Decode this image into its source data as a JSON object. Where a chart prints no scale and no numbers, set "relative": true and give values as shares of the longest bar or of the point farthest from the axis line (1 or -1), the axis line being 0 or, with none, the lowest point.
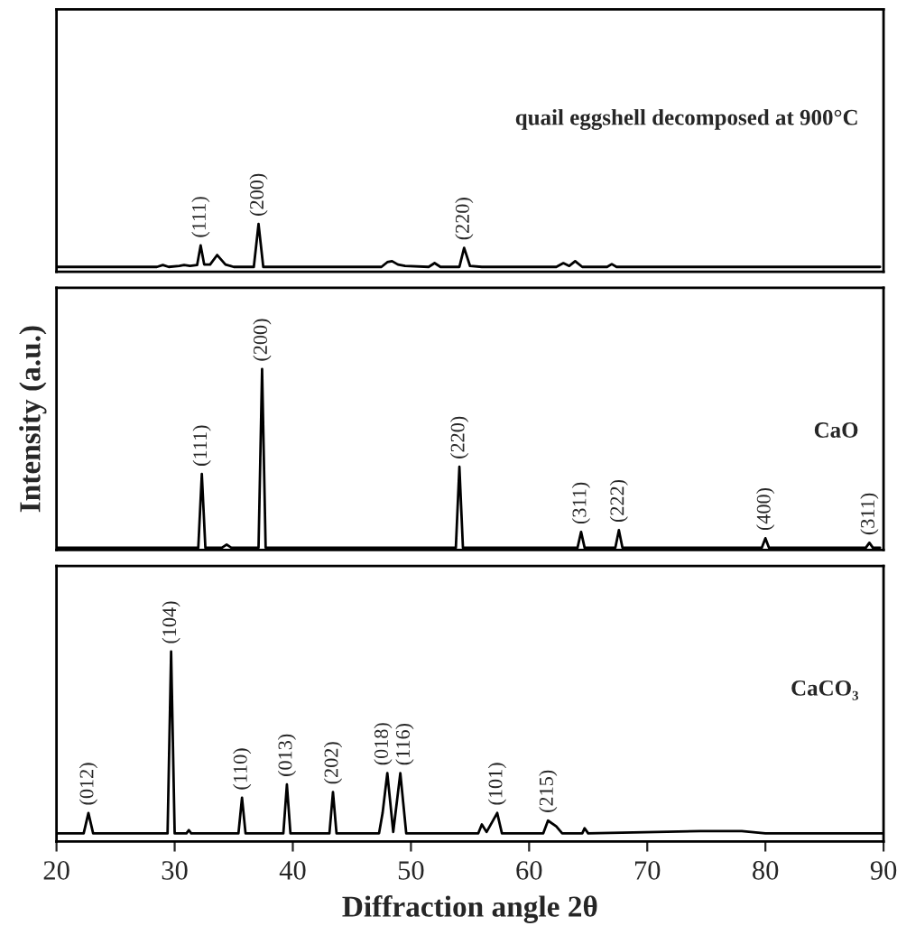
{
  "chart_data": [
    {
      "type": "line",
      "relative": true,
      "color": "#000000",
      "xlim": [
        20,
        90
      ],
      "tick_labels": false,
      "x": [
        20,
        28.5,
        29.0,
        29.5,
        30.4,
        30.8,
        31.3,
        31.9,
        32.2,
        32.5,
        33.0,
        33.6,
        34.3,
        35,
        36.7,
        37.1,
        37.5,
        38.5,
        47.5,
        48.0,
        48.4,
        48.9,
        49.5,
        51.5,
        52.0,
        52.5,
        54.1,
        54.5,
        55.0,
        56,
        62.3,
        62.9,
        63.4,
        63.9,
        64.5,
        66.6,
        67.0,
        67.4,
        89.7
      ],
      "values": [
        0.1,
        0.1,
        0.14,
        0.1,
        0.12,
        0.14,
        0.12,
        0.14,
        0.55,
        0.15,
        0.15,
        0.35,
        0.15,
        0.1,
        0.1,
        1,
        0.1,
        0.1,
        0.1,
        0.2,
        0.22,
        0.15,
        0.12,
        0.1,
        0.18,
        0.1,
        0.1,
        0.5,
        0.12,
        0.1,
        0.1,
        0.18,
        0.12,
        0.22,
        0.1,
        0.1,
        0.16,
        0.1,
        0.1
      ],
      "annotations": [
        "quail eggshell decomposed at 900°C",
        {
          "text": "(111)",
          "x": 32.2,
          "y": 0.55
        },
        {
          "text": "(200)",
          "x": 37.1,
          "y": 1
        },
        {
          "text": "(220)",
          "x": 54.5,
          "y": 0.5
        }
      ]
    },
    {
      "type": "line",
      "relative": true,
      "color": "#000000",
      "xlim": [
        20,
        90
      ],
      "tick_labels": false,
      "ylabel": "Intensity (a.u.)",
      "x": [
        20,
        32.0,
        32.3,
        32.6,
        34.0,
        34.4,
        34.8,
        37.1,
        37.4,
        37.7,
        53.8,
        54.1,
        54.4,
        64.1,
        64.4,
        64.7,
        67.3,
        67.6,
        67.9,
        79.7,
        80.0,
        80.3,
        88.5,
        88.8,
        89.1,
        89.7
      ],
      "values": [
        0.013,
        0.013,
        0.42,
        0.013,
        0.013,
        0.03,
        0.013,
        0.013,
        1,
        0.013,
        0.013,
        0.46,
        0.013,
        0.013,
        0.1,
        0.013,
        0.013,
        0.11,
        0.013,
        0.013,
        0.065,
        0.013,
        0.013,
        0.04,
        0.013,
        0.013
      ],
      "annotations": [
        "CaO",
        {
          "text": "(111)",
          "x": 32.3,
          "y": 0.42
        },
        {
          "text": "(200)",
          "x": 37.4,
          "y": 1
        },
        {
          "text": "(220)",
          "x": 54.1,
          "y": 0.46
        },
        {
          "text": "(311)",
          "x": 64.4,
          "y": 0.1
        },
        {
          "text": "(222)",
          "x": 67.6,
          "y": 0.11
        },
        {
          "text": "(400)",
          "x": 80.0,
          "y": 0.065
        },
        {
          "text": "(311)",
          "x": 88.8,
          "y": 0.04
        }
      ]
    },
    {
      "type": "line",
      "relative": true,
      "color": "#000000",
      "xlim": [
        20,
        90
      ],
      "xticks": [
        20,
        30,
        40,
        50,
        60,
        70,
        80,
        90
      ],
      "tick_labels": "x",
      "xlabel": "Diffraction angle 2θ",
      "x": [
        20,
        22.3,
        22.7,
        23.1,
        29.4,
        29.7,
        30.0,
        31.0,
        31.2,
        31.4,
        35.4,
        35.7,
        36.0,
        39.2,
        39.5,
        39.8,
        43.1,
        43.4,
        43.7,
        47.3,
        47.6,
        48.0,
        48.5,
        49.1,
        49.6,
        55.7,
        56.0,
        56.4,
        57.3,
        57.7,
        61.2,
        61.6,
        62.3,
        62.8,
        64.5,
        64.7,
        65.0,
        74.5,
        78.0,
        80,
        90
      ],
      "values": [
        0.043,
        0.043,
        0.15,
        0.043,
        0.043,
        1,
        0.043,
        0.043,
        0.06,
        0.043,
        0.043,
        0.23,
        0.043,
        0.043,
        0.3,
        0.043,
        0.043,
        0.26,
        0.043,
        0.043,
        0.15,
        0.36,
        0.05,
        0.36,
        0.043,
        0.043,
        0.09,
        0.05,
        0.15,
        0.043,
        0.043,
        0.11,
        0.08,
        0.043,
        0.043,
        0.07,
        0.043,
        0.055,
        0.055,
        0.043,
        0.043
      ],
      "annotations": [
        "CaCO₃",
        {
          "text": "(012)",
          "x": 22.7,
          "y": 0.15
        },
        {
          "text": "(104)",
          "x": 29.7,
          "y": 1
        },
        {
          "text": "(110)",
          "x": 35.7,
          "y": 0.23
        },
        {
          "text": "(013)",
          "x": 39.5,
          "y": 0.3
        },
        {
          "text": "(202)",
          "x": 43.4,
          "y": 0.26
        },
        {
          "text": "(018)",
          "x": 48.0,
          "y": 0.36
        },
        {
          "text": "(116)",
          "x": 49.1,
          "y": 0.36
        },
        {
          "text": "(101)",
          "x": 57.3,
          "y": 0.15
        },
        {
          "text": "(215)",
          "x": 61.6,
          "y": 0.11
        }
      ]
    }
  ]
}
